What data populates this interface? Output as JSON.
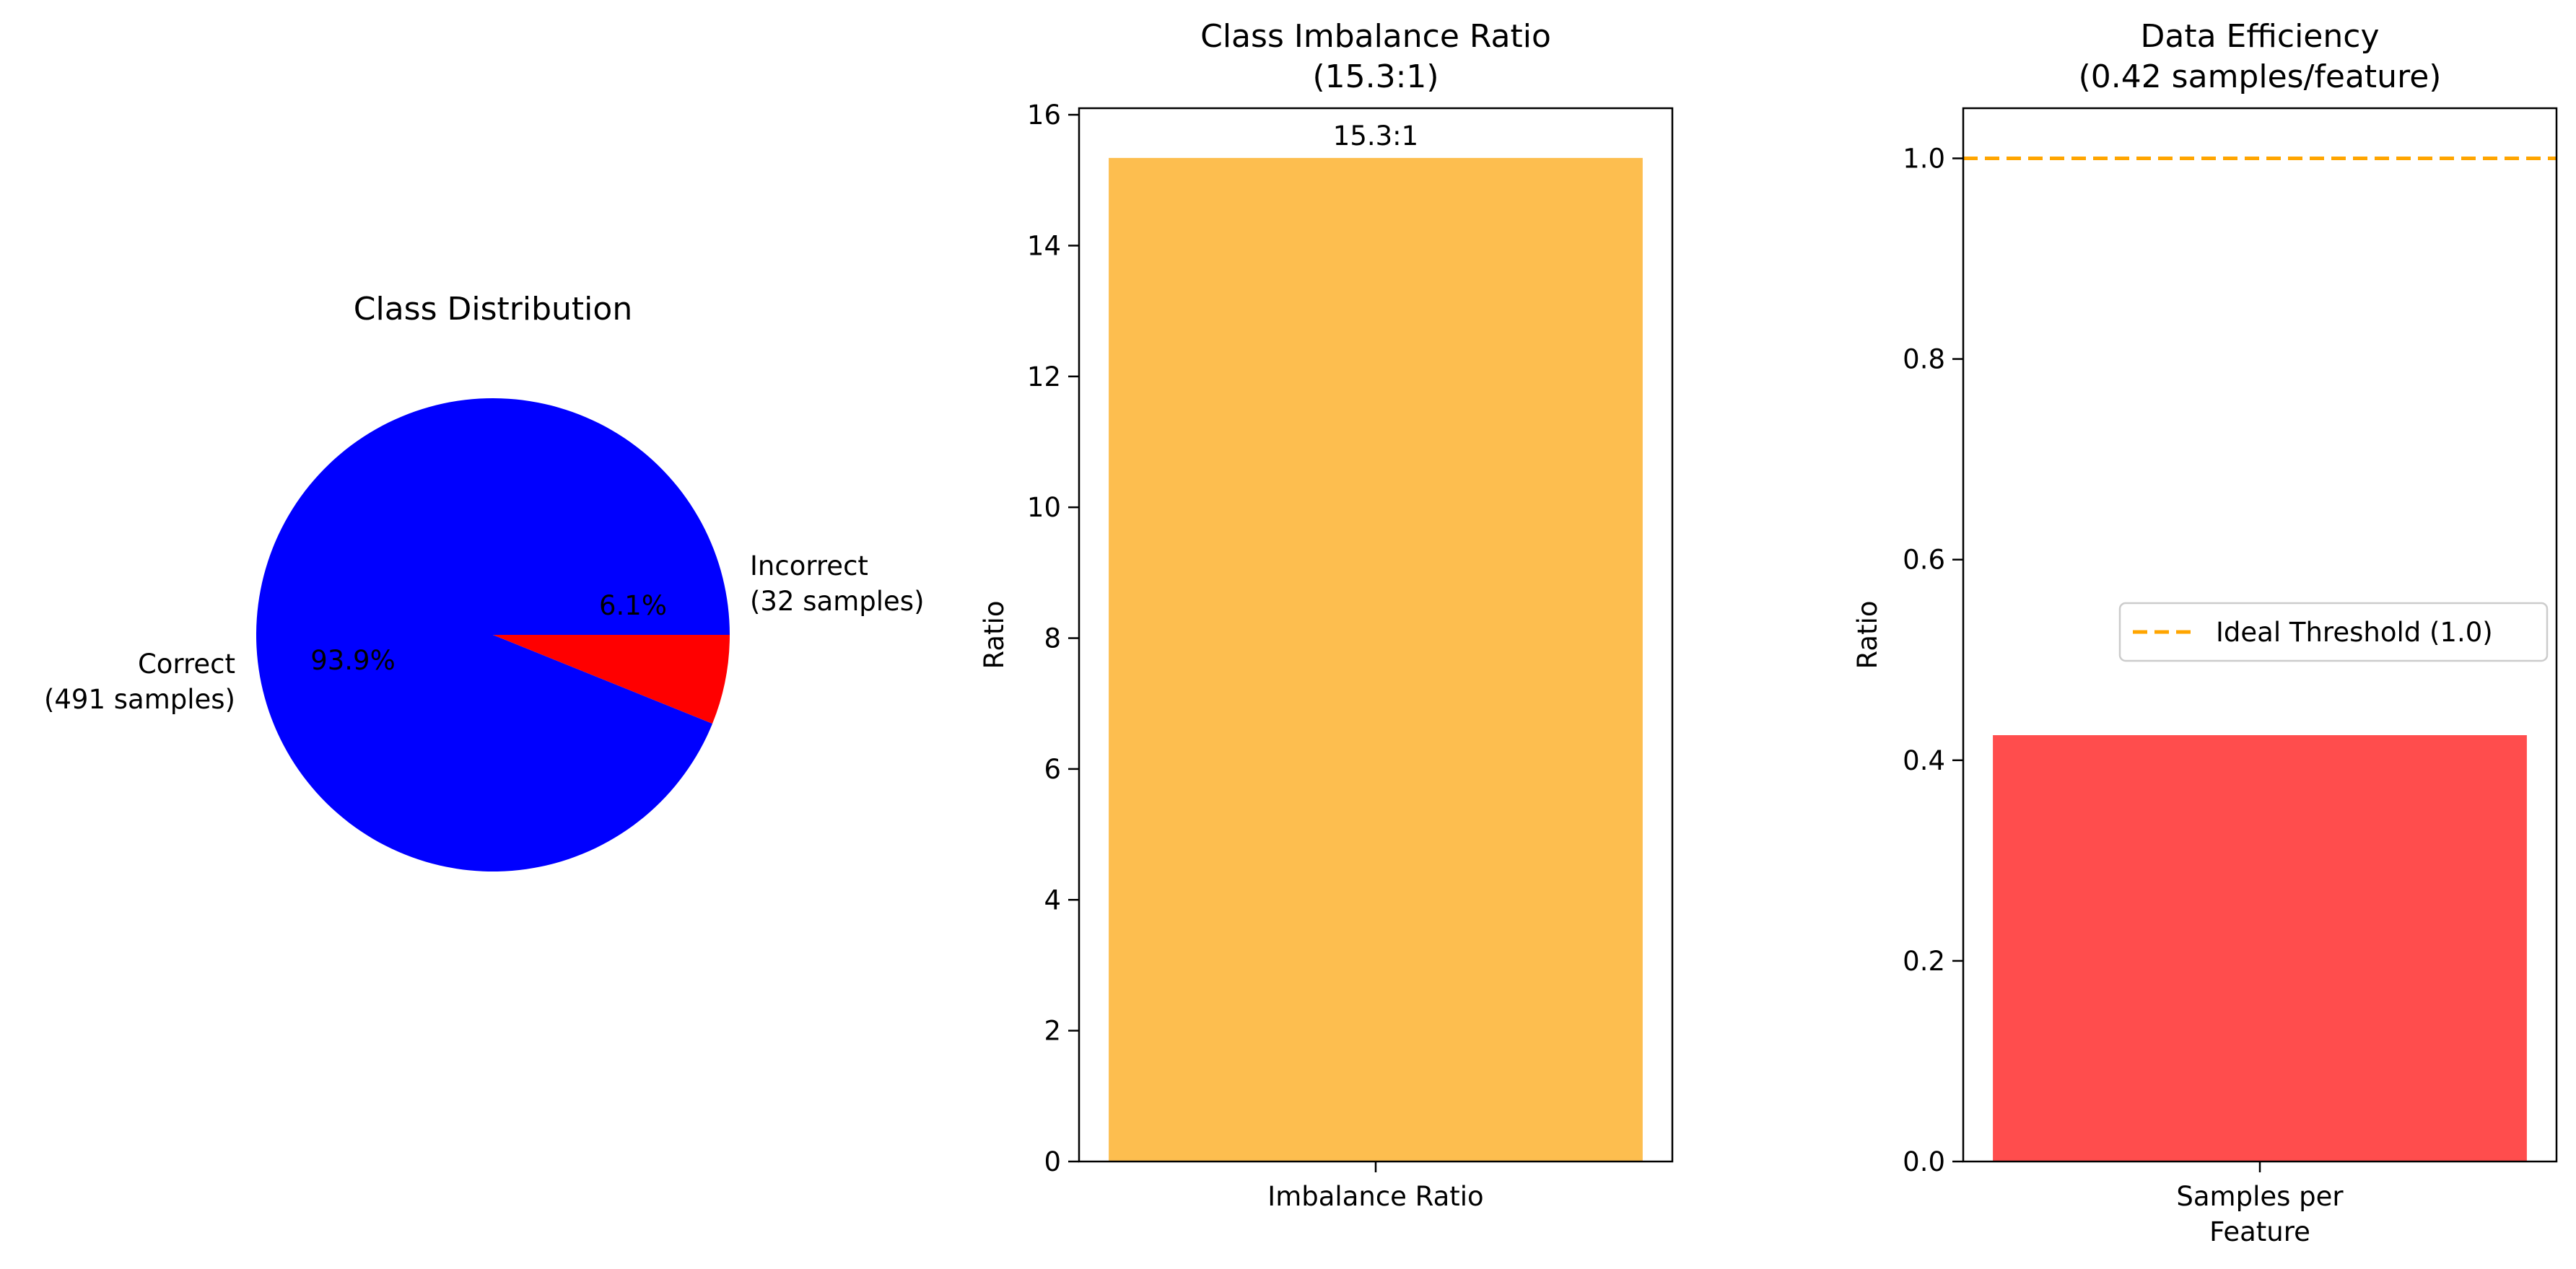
{
  "colors": {
    "correct": "#0000ff",
    "incorrect": "#ff0000",
    "imbalance_bar": "#fdbe4f",
    "efficiency_bar": "#ff4d4d",
    "threshold_line": "#ffa500"
  },
  "chart_data": [
    {
      "type": "pie",
      "title": "Class Distribution",
      "slices": [
        {
          "label_line1": "Correct",
          "label_line2": "(491 samples)",
          "value": 491,
          "pct": "93.9%"
        },
        {
          "label_line1": "Incorrect",
          "label_line2": "(32 samples)",
          "value": 32,
          "pct": "6.1%"
        }
      ]
    },
    {
      "type": "bar",
      "title_line1": "Class Imbalance Ratio",
      "title_line2": "(15.3:1)",
      "categories": [
        "Imbalance Ratio"
      ],
      "values": [
        15.34
      ],
      "bar_label": "15.3:1",
      "ylabel": "Ratio",
      "xlabel": "",
      "ylim": [
        0,
        16.1
      ],
      "yticks": [
        "0",
        "2",
        "4",
        "6",
        "8",
        "10",
        "12",
        "14",
        "16"
      ],
      "grid": false
    },
    {
      "type": "bar",
      "title_line1": "Data Efficiency",
      "title_line2": "(0.42 samples/feature)",
      "categories_line1": "Samples per",
      "categories_line2": "Feature",
      "values": [
        0.425
      ],
      "threshold": 1.0,
      "legend_label": "Ideal Threshold (1.0)",
      "legend_position": "center-right",
      "ylabel": "Ratio",
      "xlabel": "",
      "ylim": [
        0,
        1.05
      ],
      "yticks": [
        "0.0",
        "0.2",
        "0.4",
        "0.6",
        "0.8",
        "1.0"
      ],
      "grid": false
    }
  ]
}
